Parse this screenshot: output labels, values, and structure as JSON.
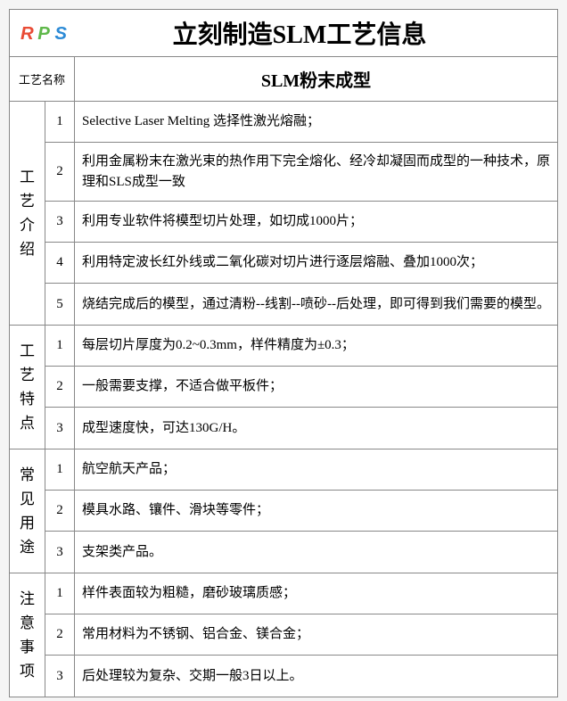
{
  "logo_colors": {
    "r": "#e94b35",
    "p": "#5fb84a",
    "s": "#2b8ad6"
  },
  "title": "立刻制造SLM工艺信息",
  "process_name_label": "工艺名称",
  "process_name": "SLM粉末成型",
  "sections": [
    {
      "label": "工艺介绍",
      "items": [
        {
          "num": "1",
          "text": "Selective Laser Melting 选择性激光熔融；"
        },
        {
          "num": "2",
          "text": "利用金属粉末在激光束的热作用下完全熔化、经冷却凝固而成型的一种技术，原理和SLS成型一致"
        },
        {
          "num": "3",
          "text": "利用专业软件将模型切片处理，如切成1000片；"
        },
        {
          "num": "4",
          "text": "利用特定波长红外线或二氧化碳对切片进行逐层熔融、叠加1000次；"
        },
        {
          "num": "5",
          "text": "烧结完成后的模型，通过清粉--线割--喷砂--后处理，即可得到我们需要的模型。"
        }
      ]
    },
    {
      "label": "工艺特点",
      "items": [
        {
          "num": "1",
          "text": "每层切片厚度为0.2~0.3mm，样件精度为±0.3；"
        },
        {
          "num": "2",
          "text": "一般需要支撑，不适合做平板件；"
        },
        {
          "num": "3",
          "text": "成型速度快，可达130G/H。"
        }
      ]
    },
    {
      "label": "常见用途",
      "items": [
        {
          "num": "1",
          "text": "航空航天产品；"
        },
        {
          "num": "2",
          "text": "模具水路、镶件、滑块等零件；"
        },
        {
          "num": "3",
          "text": "支架类产品。"
        }
      ]
    },
    {
      "label": "注意事项",
      "items": [
        {
          "num": "1",
          "text": "样件表面较为粗糙，磨砂玻璃质感；"
        },
        {
          "num": "2",
          "text": "常用材料为不锈钢、铝合金、镁合金；"
        },
        {
          "num": "3",
          "text": "后处理较为复杂、交期一般3日以上。"
        }
      ]
    }
  ]
}
